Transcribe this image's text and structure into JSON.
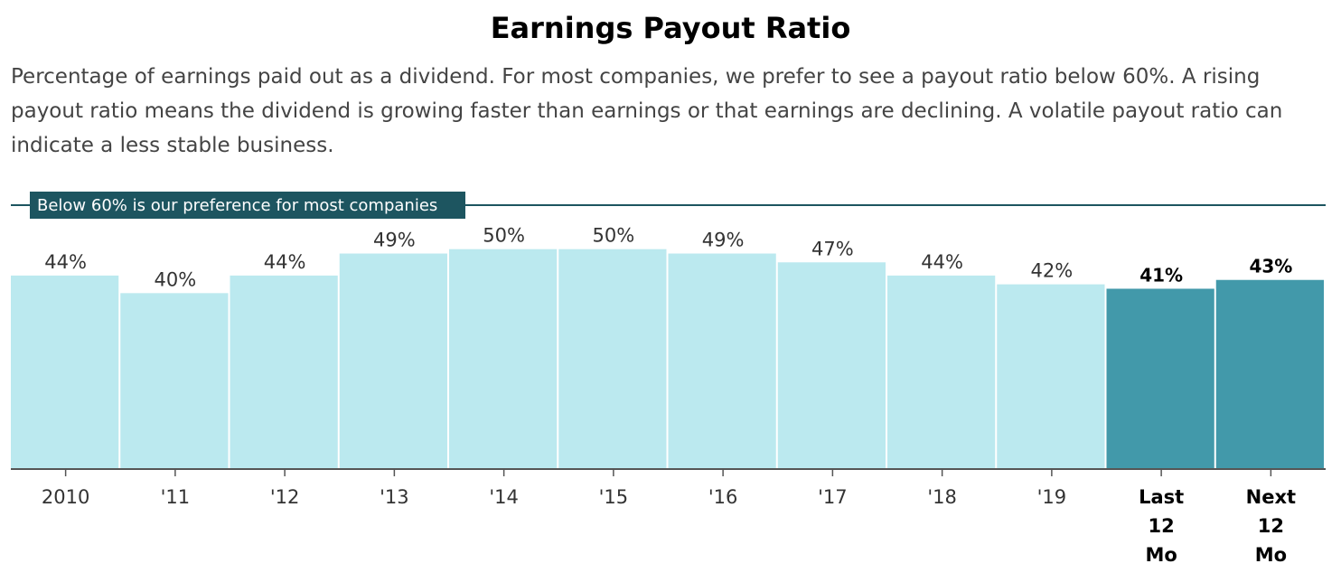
{
  "header": {
    "title": "Earnings Payout Ratio",
    "subtitle": "Percentage of earnings paid out as a dividend. For most companies, we prefer to see a payout ratio below 60%. A rising payout ratio means the dividend is growing faster than earnings or that earnings are declining. A volatile payout ratio can indicate a less stable business."
  },
  "colors": {
    "historical_bar": "#bbe9ef",
    "highlight_bar": "#4299aa",
    "reference_line": "#1d5560",
    "reference_label_bg": "#1d5560",
    "reference_label_text": "#ffffff"
  },
  "chart_data": {
    "type": "bar",
    "title": "Earnings Payout Ratio",
    "categories": [
      "2010",
      "'11",
      "'12",
      "'13",
      "'14",
      "'15",
      "'16",
      "'17",
      "'18",
      "'19",
      "Last 12 Mo",
      "Next 12 Mo"
    ],
    "category_lines": [
      [
        "2010"
      ],
      [
        "'11"
      ],
      [
        "'12"
      ],
      [
        "'13"
      ],
      [
        "'14"
      ],
      [
        "'15"
      ],
      [
        "'16"
      ],
      [
        "'17"
      ],
      [
        "'18"
      ],
      [
        "'19"
      ],
      [
        "Last",
        "12",
        "Mo"
      ],
      [
        "Next",
        "12",
        "Mo"
      ]
    ],
    "values": [
      44,
      40,
      44,
      49,
      50,
      50,
      49,
      47,
      44,
      42,
      41,
      43
    ],
    "data_labels": [
      "44%",
      "40%",
      "44%",
      "49%",
      "50%",
      "50%",
      "49%",
      "47%",
      "44%",
      "42%",
      "41%",
      "43%"
    ],
    "highlighted": [
      false,
      false,
      false,
      false,
      false,
      false,
      false,
      false,
      false,
      false,
      true,
      true
    ],
    "ylim": [
      0,
      60
    ],
    "unit": "%",
    "reference_line": {
      "value": 60,
      "label": "Below 60% is our preference for most companies"
    },
    "grid": false,
    "legend": "none"
  }
}
